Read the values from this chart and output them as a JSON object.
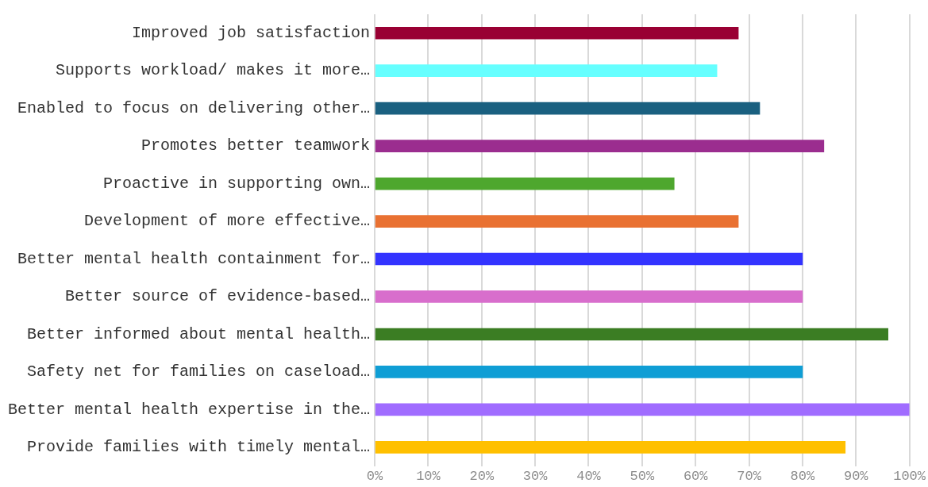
{
  "chart_data": {
    "type": "bar",
    "orientation": "horizontal",
    "categories": [
      "Improved job satisfaction",
      "Supports workload/ makes it more…",
      "Enabled to focus on delivering other…",
      "Promotes better teamwork",
      "Proactive in supporting own…",
      "Development of more effective…",
      "Better mental health containment for…",
      "Better source of evidence-based…",
      "Better informed about mental health…",
      "Safety net for families on caseload…",
      "Better mental health expertise in the…",
      "Provide families with timely mental…"
    ],
    "values": [
      68,
      64,
      72,
      84,
      56,
      68,
      80,
      80,
      96,
      80,
      100,
      88
    ],
    "colors": [
      "#990033",
      "#66ffff",
      "#1a6080",
      "#9b2d8f",
      "#4ea72e",
      "#e97132",
      "#3333ff",
      "#d86ecc",
      "#3b7d23",
      "#0f9ed5",
      "#a06cff",
      "#ffc000"
    ],
    "xlim": [
      0,
      100
    ],
    "xticks": [
      {
        "value": 0,
        "label": "0%"
      },
      {
        "value": 10,
        "label": "10%"
      },
      {
        "value": 20,
        "label": "20%"
      },
      {
        "value": 30,
        "label": "30%"
      },
      {
        "value": 40,
        "label": "40%"
      },
      {
        "value": 50,
        "label": "50%"
      },
      {
        "value": 60,
        "label": "60%"
      },
      {
        "value": 70,
        "label": "70%"
      },
      {
        "value": 80,
        "label": "80%"
      },
      {
        "value": 90,
        "label": "90%"
      },
      {
        "value": 100,
        "label": "100%"
      }
    ],
    "grid": "x",
    "legend": false
  }
}
